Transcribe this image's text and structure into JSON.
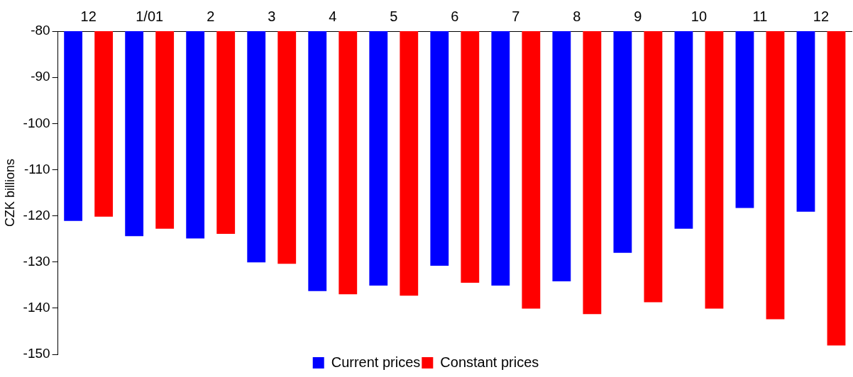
{
  "chart_data": {
    "type": "bar",
    "ylabel": "CZK billions",
    "categories": [
      "12",
      "1/01",
      "2",
      "3",
      "4",
      "5",
      "6",
      "7",
      "8",
      "9",
      "10",
      "11",
      "12"
    ],
    "series": [
      {
        "name": "Current prices",
        "color": "#0000ff",
        "values": [
          -121.1,
          -124.4,
          -124.9,
          -130.1,
          -136.3,
          -135.1,
          -130.8,
          -135.1,
          -134.2,
          -128.0,
          -122.8,
          -118.3,
          -119.1
        ]
      },
      {
        "name": "Constant prices",
        "color": "#ff0000",
        "values": [
          -120.2,
          -122.8,
          -123.9,
          -130.4,
          -137.0,
          -137.3,
          -134.5,
          -140.1,
          -141.3,
          -138.7,
          -140.1,
          -142.4,
          -148.1
        ]
      }
    ],
    "ylim": [
      -150,
      -80
    ],
    "yticks": [
      -150,
      -140,
      -130,
      -120,
      -110,
      -100,
      -90,
      -80
    ],
    "grid": false,
    "legend": "bottom"
  }
}
